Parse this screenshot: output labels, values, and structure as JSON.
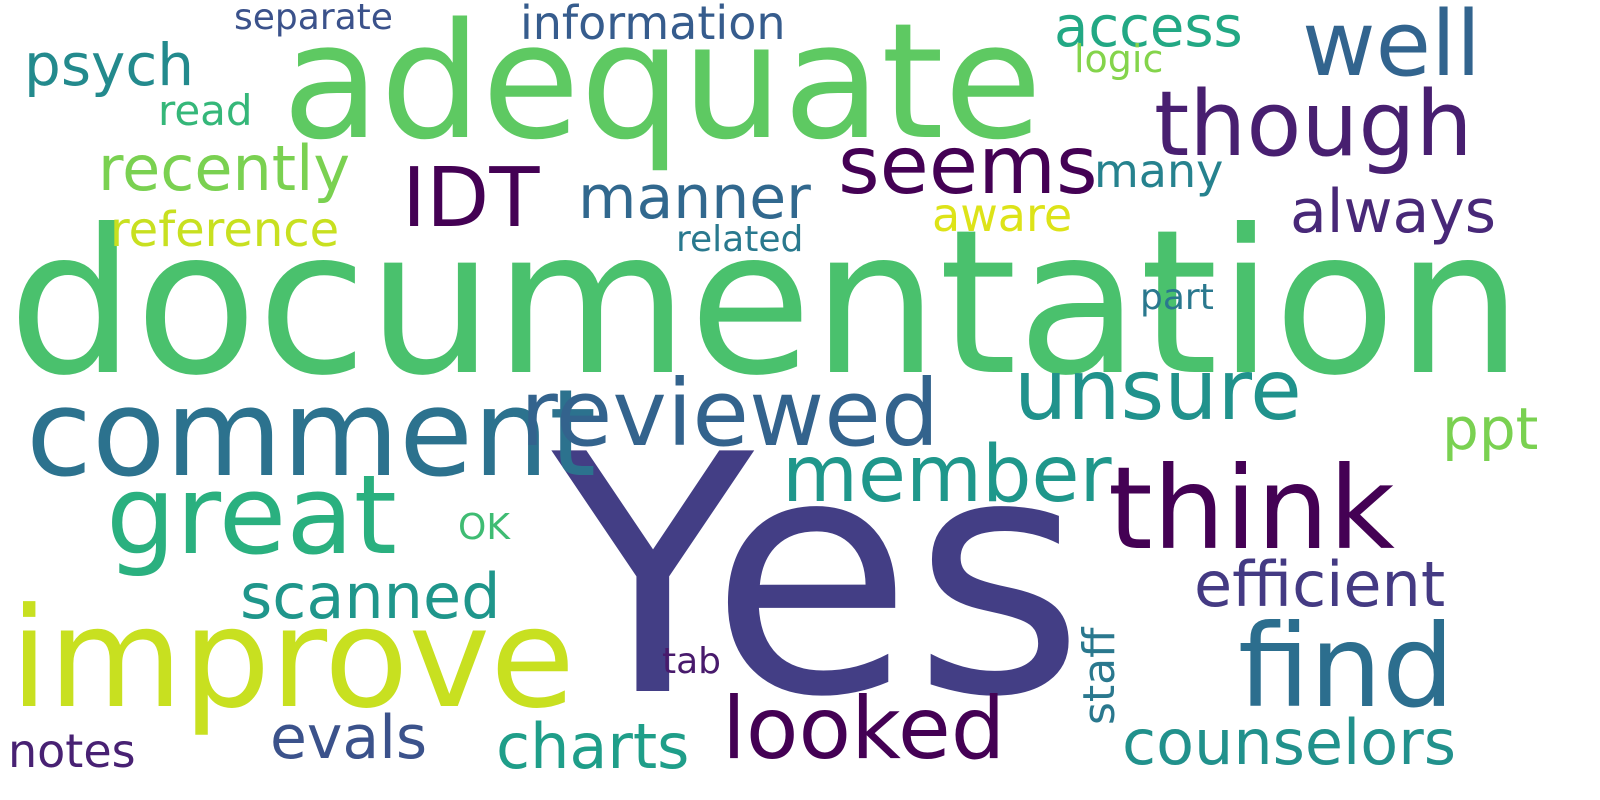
{
  "cloud": {
    "words": {
      "documentation": {
        "text": "documentation",
        "color": "#4ac16d"
      },
      "yes": {
        "text": "Yes",
        "color": "#433e85"
      },
      "adequate": {
        "text": "adequate",
        "color": "#5ec962"
      },
      "improve": {
        "text": "improve",
        "color": "#c8e020"
      },
      "comment": {
        "text": "comment",
        "color": "#2c728e"
      },
      "think": {
        "text": "think",
        "color": "#440154"
      },
      "find": {
        "text": "find",
        "color": "#2c6e8e"
      },
      "great": {
        "text": "great",
        "color": "#2ab07f"
      },
      "reviewed": {
        "text": "reviewed",
        "color": "#33638d"
      },
      "though": {
        "text": "though",
        "color": "#481f70"
      },
      "unsure": {
        "text": "unsure",
        "color": "#20928c"
      },
      "seems": {
        "text": "seems",
        "color": "#440154"
      },
      "member": {
        "text": "member",
        "color": "#1f978b"
      },
      "looked": {
        "text": "looked",
        "color": "#440154"
      },
      "well": {
        "text": "well",
        "color": "#32648e"
      },
      "idt": {
        "text": "IDT",
        "color": "#440154"
      },
      "counselors": {
        "text": "counselors",
        "color": "#21918c"
      },
      "efficient": {
        "text": "efficient",
        "color": "#443a83"
      },
      "charts": {
        "text": "charts",
        "color": "#1f9e89"
      },
      "scanned": {
        "text": "scanned",
        "color": "#1f968b"
      },
      "evals": {
        "text": "evals",
        "color": "#3b528b"
      },
      "manner": {
        "text": "manner",
        "color": "#31688e"
      },
      "always": {
        "text": "always",
        "color": "#482878"
      },
      "recently": {
        "text": "recently",
        "color": "#7ad151"
      },
      "psych": {
        "text": "psych",
        "color": "#238a8d"
      },
      "access": {
        "text": "access",
        "color": "#22a884"
      },
      "information": {
        "text": "information",
        "color": "#365c8d"
      },
      "ppt": {
        "text": "ppt",
        "color": "#7ad151"
      },
      "notes": {
        "text": "notes",
        "color": "#482173"
      },
      "reference": {
        "text": "reference",
        "color": "#c8e020"
      },
      "staff": {
        "text": "staff",
        "color": "#2a788e"
      },
      "aware": {
        "text": "aware",
        "color": "#dde318"
      },
      "many": {
        "text": "many",
        "color": "#26828e"
      },
      "separate": {
        "text": "separate",
        "color": "#3b528b"
      },
      "read": {
        "text": "read",
        "color": "#35b779"
      },
      "logic": {
        "text": "logic",
        "color": "#84d44b"
      },
      "related": {
        "text": "related",
        "color": "#29798e"
      },
      "part": {
        "text": "part",
        "color": "#2a788e"
      },
      "ok": {
        "text": "OK",
        "color": "#3fbc73"
      },
      "tab": {
        "text": "tab",
        "color": "#481a6c"
      }
    }
  }
}
